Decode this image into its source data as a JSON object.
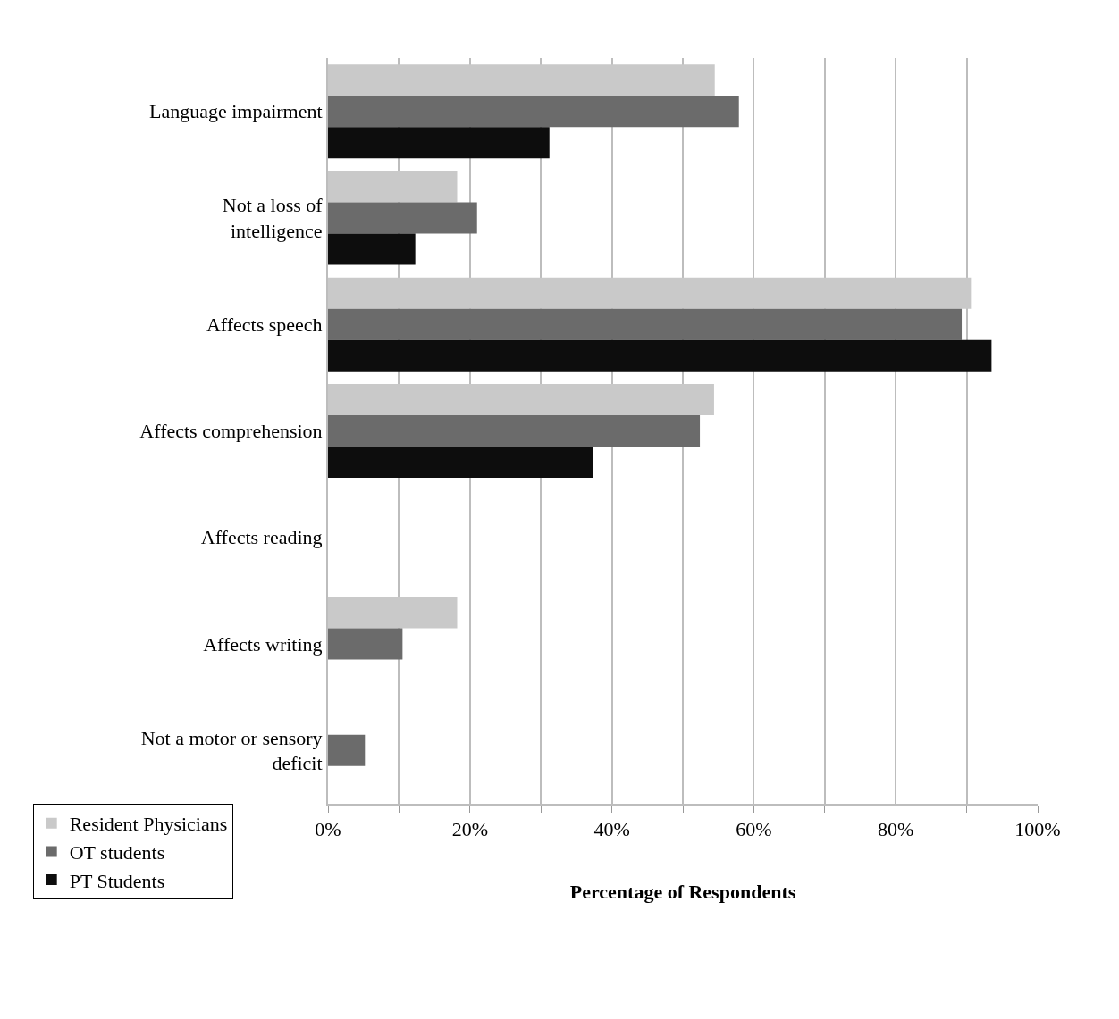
{
  "chart_data": {
    "type": "bar",
    "orientation": "horizontal",
    "xlabel": "Percentage of Respondents",
    "categories": [
      "Language impairment",
      "Not a loss of intelligence",
      "Affects speech",
      "Affects comprehension",
      "Affects reading",
      "Affects writing",
      "Not a motor or sensory deficit"
    ],
    "series": [
      {
        "name": "Resident Physicians",
        "color": "#c9c9c9",
        "values": [
          54.5,
          18.2,
          90.6,
          54.4,
          0,
          18.2,
          0
        ]
      },
      {
        "name": "OT students",
        "color": "#6b6b6b",
        "values": [
          57.9,
          21.0,
          89.3,
          52.4,
          0,
          10.5,
          5.2
        ]
      },
      {
        "name": "PT Students",
        "color": "#0d0d0d",
        "values": [
          31.2,
          12.3,
          93.5,
          37.4,
          0,
          0,
          0
        ]
      }
    ],
    "xlim": [
      0,
      100
    ],
    "xticks": [
      {
        "value": 0,
        "label": "0%"
      },
      {
        "value": 10,
        "label": null
      },
      {
        "value": 20,
        "label": "20%"
      },
      {
        "value": 30,
        "label": null
      },
      {
        "value": 40,
        "label": "40%"
      },
      {
        "value": 50,
        "label": null
      },
      {
        "value": 60,
        "label": "60%"
      },
      {
        "value": 70,
        "label": null
      },
      {
        "value": 80,
        "label": "80%"
      },
      {
        "value": 90,
        "label": null
      },
      {
        "value": 100,
        "label": "100%"
      }
    ],
    "grid": "x",
    "legend": "bottom left"
  }
}
